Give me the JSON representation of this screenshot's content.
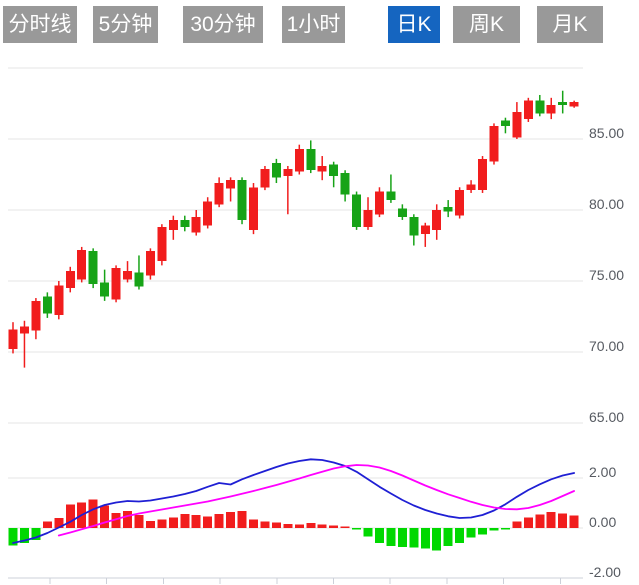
{
  "tab_bar": {
    "tabs": [
      {
        "label": "分时线",
        "active": false
      },
      {
        "label": "5分钟",
        "active": false
      },
      {
        "label": "30分钟",
        "active": false
      },
      {
        "label": "1小时",
        "active": false
      },
      {
        "label": "日K",
        "active": true
      },
      {
        "label": "周K",
        "active": false
      },
      {
        "label": "月K",
        "active": false
      }
    ]
  },
  "colors": {
    "up": "#f11d1d",
    "down": "#17a317",
    "macd_up": "#f11d1d",
    "macd_down": "#00d800",
    "dif_line": "#1f1fd4",
    "dea_line": "#ff00ff",
    "grid": "#e5e5e5",
    "axis_line": "#ccd0d9",
    "axis_label": "#565a61",
    "tab_bg": "#999999",
    "tab_active_bg": "#1565c0",
    "tab_text": "#ffffff",
    "background": "#ffffff"
  },
  "chart_data": {
    "type": "candlestick",
    "title": "",
    "x_count": 50,
    "legend": [],
    "panels": [
      {
        "name": "price",
        "ylim": [
          63.5,
          90.5
        ],
        "grid": [
          {
            "value": 90,
            "label": null
          },
          {
            "value": 85,
            "label": "85.00"
          },
          {
            "value": 80,
            "label": "80.00"
          },
          {
            "value": 75,
            "label": "75.00"
          },
          {
            "value": 70,
            "label": "70.00"
          },
          {
            "value": 65,
            "label": "65.00"
          }
        ],
        "candles_ohlc": [
          [
            70.2,
            72.1,
            69.9,
            71.6
          ],
          [
            71.3,
            72.2,
            68.9,
            71.8
          ],
          [
            71.5,
            73.8,
            70.9,
            73.6
          ],
          [
            73.9,
            74.2,
            72.4,
            72.7
          ],
          [
            72.6,
            75.0,
            72.3,
            74.7
          ],
          [
            74.5,
            76.0,
            74.2,
            75.7
          ],
          [
            75.1,
            77.4,
            74.9,
            77.2
          ],
          [
            77.1,
            77.3,
            74.5,
            74.8
          ],
          [
            74.9,
            75.8,
            73.6,
            73.9
          ],
          [
            73.7,
            76.1,
            73.5,
            75.9
          ],
          [
            75.1,
            76.4,
            74.9,
            75.7
          ],
          [
            75.6,
            76.8,
            74.4,
            74.6
          ],
          [
            75.4,
            77.3,
            75.1,
            77.1
          ],
          [
            76.4,
            79.0,
            76.1,
            78.8
          ],
          [
            78.6,
            79.6,
            77.9,
            79.3
          ],
          [
            79.3,
            79.6,
            78.5,
            78.8
          ],
          [
            78.4,
            80.0,
            78.2,
            79.5
          ],
          [
            78.9,
            80.9,
            78.7,
            80.6
          ],
          [
            80.4,
            82.3,
            80.2,
            81.9
          ],
          [
            81.5,
            82.3,
            80.6,
            82.1
          ],
          [
            82.1,
            82.3,
            79.0,
            79.3
          ],
          [
            78.6,
            81.9,
            78.3,
            81.6
          ],
          [
            81.6,
            83.1,
            81.4,
            82.9
          ],
          [
            83.3,
            83.6,
            81.9,
            82.3
          ],
          [
            82.4,
            83.1,
            79.7,
            82.9
          ],
          [
            82.7,
            84.6,
            82.5,
            84.3
          ],
          [
            84.3,
            84.9,
            82.6,
            82.8
          ],
          [
            82.7,
            83.8,
            82.1,
            83.1
          ],
          [
            83.2,
            83.4,
            81.6,
            82.4
          ],
          [
            82.6,
            82.8,
            80.6,
            81.1
          ],
          [
            81.1,
            81.3,
            78.6,
            78.8
          ],
          [
            78.8,
            80.9,
            78.6,
            80.0
          ],
          [
            79.7,
            81.6,
            79.5,
            81.3
          ],
          [
            81.3,
            82.5,
            80.5,
            80.7
          ],
          [
            80.1,
            80.4,
            79.3,
            79.5
          ],
          [
            79.5,
            79.7,
            77.5,
            78.2
          ],
          [
            78.3,
            79.1,
            77.4,
            78.9
          ],
          [
            78.6,
            80.4,
            77.9,
            80.0
          ],
          [
            80.2,
            80.7,
            79.5,
            79.9
          ],
          [
            79.6,
            81.6,
            79.4,
            81.4
          ],
          [
            81.4,
            82.1,
            81.2,
            81.8
          ],
          [
            81.4,
            83.8,
            81.2,
            83.6
          ],
          [
            83.4,
            86.1,
            83.2,
            85.9
          ],
          [
            86.3,
            86.5,
            85.4,
            85.9
          ],
          [
            85.1,
            87.6,
            85.0,
            86.9
          ],
          [
            86.4,
            87.9,
            86.2,
            87.7
          ],
          [
            87.7,
            88.1,
            86.6,
            86.8
          ],
          [
            86.8,
            87.9,
            86.4,
            87.4
          ],
          [
            87.6,
            88.4,
            86.8,
            87.4
          ],
          [
            87.3,
            87.7,
            87.2,
            87.6
          ]
        ]
      },
      {
        "name": "macd",
        "ylim": [
          -2.3,
          3.1
        ],
        "grid": [
          {
            "value": 2,
            "label": "2.00"
          },
          {
            "value": 0,
            "label": "0.00"
          },
          {
            "value": -2,
            "label": "-2.00"
          }
        ],
        "histogram": [
          -0.7,
          -0.6,
          -0.48,
          0.26,
          0.4,
          0.95,
          1.03,
          1.15,
          0.91,
          0.6,
          0.69,
          0.52,
          0.29,
          0.34,
          0.43,
          0.57,
          0.52,
          0.46,
          0.57,
          0.64,
          0.69,
          0.34,
          0.26,
          0.22,
          0.17,
          0.15,
          0.2,
          0.15,
          0.1,
          0.05,
          -0.06,
          -0.34,
          -0.6,
          -0.72,
          -0.75,
          -0.77,
          -0.81,
          -0.89,
          -0.72,
          -0.6,
          -0.38,
          -0.25,
          -0.1,
          -0.05,
          0.26,
          0.43,
          0.55,
          0.64,
          0.58,
          0.5
        ],
        "dif": [
          -0.6,
          -0.5,
          -0.38,
          -0.2,
          0.02,
          0.25,
          0.52,
          0.75,
          0.92,
          1.02,
          1.08,
          1.06,
          1.1,
          1.18,
          1.26,
          1.36,
          1.48,
          1.65,
          1.8,
          1.74,
          1.95,
          2.12,
          2.28,
          2.44,
          2.58,
          2.68,
          2.75,
          2.72,
          2.62,
          2.48,
          2.25,
          1.95,
          1.65,
          1.38,
          1.12,
          0.9,
          0.72,
          0.58,
          0.47,
          0.4,
          0.42,
          0.52,
          0.7,
          0.95,
          1.25,
          1.52,
          1.75,
          1.95,
          2.1,
          2.2
        ],
        "dea": [
          null,
          null,
          null,
          null,
          -0.3,
          -0.18,
          -0.05,
          0.08,
          0.22,
          0.35,
          0.48,
          0.58,
          0.66,
          0.74,
          0.82,
          0.9,
          0.98,
          1.06,
          1.16,
          1.26,
          1.37,
          1.48,
          1.6,
          1.72,
          1.85,
          1.98,
          2.12,
          2.25,
          2.38,
          2.47,
          2.52,
          2.5,
          2.42,
          2.28,
          2.1,
          1.9,
          1.7,
          1.52,
          1.35,
          1.2,
          1.05,
          0.92,
          0.82,
          0.76,
          0.75,
          0.8,
          0.92,
          1.08,
          1.28,
          1.48
        ]
      }
    ]
  }
}
